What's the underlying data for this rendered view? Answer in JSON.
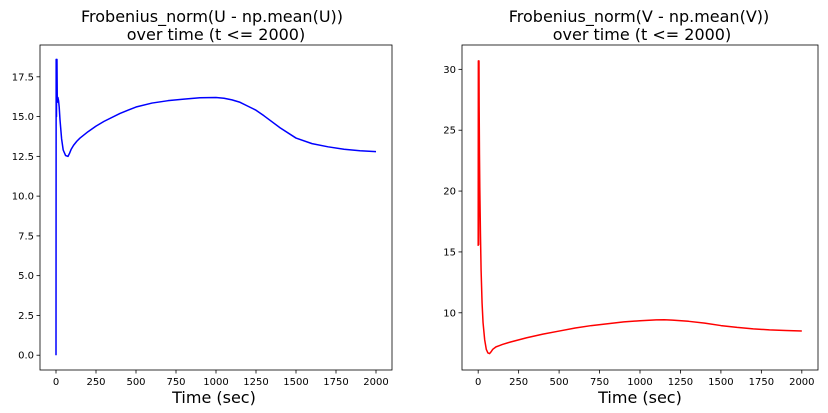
{
  "chart_data": [
    {
      "type": "line",
      "title_line1": "Frobenius_norm(U - np.mean(U))",
      "title_line2": "over time (t <= 2000)",
      "xlabel": "Time (sec)",
      "ylabel": "",
      "xlim": [
        -100,
        2100
      ],
      "ylim": [
        -0.93,
        19.5
      ],
      "xticks": [
        0,
        250,
        500,
        750,
        1000,
        1250,
        1500,
        1750,
        2000
      ],
      "yticks": [
        0.0,
        2.5,
        5.0,
        7.5,
        10.0,
        12.5,
        15.0,
        17.5
      ],
      "ytick_labels": [
        "0.0",
        "2.5",
        "5.0",
        "7.5",
        "10.0",
        "12.5",
        "15.0",
        "17.5"
      ],
      "grid": false,
      "series": [
        {
          "color": "#0000ff",
          "x": [
            0,
            1,
            2,
            3,
            4,
            6,
            8,
            12,
            16,
            20,
            25,
            35,
            45,
            60,
            75,
            85,
            95,
            110,
            130,
            150,
            200,
            250,
            300,
            400,
            500,
            600,
            700,
            800,
            900,
            1000,
            1050,
            1100,
            1150,
            1200,
            1250,
            1300,
            1400,
            1500,
            1600,
            1700,
            1800,
            1900,
            2000
          ],
          "y": [
            0.0,
            18.6,
            16.8,
            15.0,
            17.6,
            18.6,
            15.9,
            16.2,
            16.0,
            15.6,
            14.8,
            13.6,
            12.9,
            12.55,
            12.5,
            12.7,
            12.95,
            13.2,
            13.45,
            13.65,
            14.05,
            14.4,
            14.7,
            15.2,
            15.6,
            15.85,
            16.0,
            16.1,
            16.18,
            16.2,
            16.15,
            16.05,
            15.9,
            15.65,
            15.4,
            15.05,
            14.3,
            13.65,
            13.3,
            13.1,
            12.95,
            12.85,
            12.8
          ]
        }
      ]
    },
    {
      "type": "line",
      "title_line1": "Frobenius_norm(V - np.mean(V))",
      "title_line2": "over time (t <= 2000)",
      "xlabel": "Time (sec)",
      "ylabel": "",
      "xlim": [
        -100,
        2100
      ],
      "ylim": [
        5.3,
        32.0
      ],
      "xticks": [
        0,
        250,
        500,
        750,
        1000,
        1250,
        1500,
        1750,
        2000
      ],
      "yticks": [
        10,
        15,
        20,
        25,
        30
      ],
      "ytick_labels": [
        "10",
        "15",
        "20",
        "25",
        "30"
      ],
      "grid": false,
      "series": [
        {
          "color": "#ff0000",
          "x": [
            0,
            1,
            2,
            3,
            4,
            5,
            6,
            8,
            10,
            14,
            18,
            24,
            30,
            40,
            50,
            60,
            70,
            80,
            90,
            110,
            130,
            150,
            200,
            300,
            400,
            500,
            600,
            700,
            800,
            900,
            1000,
            1100,
            1150,
            1200,
            1300,
            1400,
            1500,
            1600,
            1700,
            1800,
            1900,
            2000
          ],
          "y": [
            15.5,
            30.7,
            17.0,
            15.6,
            29.5,
            30.7,
            27.0,
            23.0,
            20.3,
            16.5,
            13.5,
            10.8,
            9.2,
            7.8,
            7.0,
            6.7,
            6.65,
            6.8,
            7.0,
            7.2,
            7.3,
            7.4,
            7.6,
            7.95,
            8.25,
            8.5,
            8.75,
            8.95,
            9.1,
            9.25,
            9.35,
            9.42,
            9.43,
            9.4,
            9.3,
            9.15,
            8.95,
            8.8,
            8.68,
            8.6,
            8.55,
            8.5
          ]
        }
      ]
    }
  ]
}
